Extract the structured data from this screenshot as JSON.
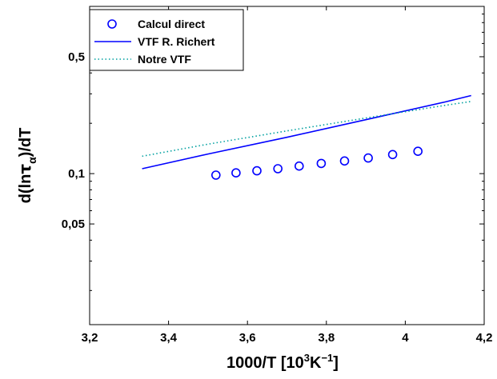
{
  "chart_data": {
    "type": "scatter",
    "xlabel": {
      "base": "1000/T [10",
      "sup1": "3",
      "mid": "K",
      "sup2": "−1",
      "end": "]"
    },
    "ylabel": {
      "pre": "d(ln",
      "greek": "τ",
      "sub": "α",
      "post": ")/dT"
    },
    "xlim": [
      3.2,
      4.2
    ],
    "ylim": [
      0.0125,
      1.0
    ],
    "yscale": "log",
    "grid": false,
    "legend_position": "top-left",
    "x_ticks": [
      3.2,
      3.4,
      3.6,
      3.8,
      4.0,
      4.2
    ],
    "x_tick_labels": [
      "3,2",
      "3,4",
      "3,6",
      "3,8",
      "4",
      "4,2"
    ],
    "y_ticks": [
      0.05,
      0.1,
      0.5
    ],
    "y_tick_labels": [
      "0,05",
      "0,1",
      "0,5"
    ],
    "series": [
      {
        "name": "Calcul direct",
        "kind": "markers",
        "marker": "circle",
        "color": "#0000ff",
        "x": [
          3.52,
          3.571,
          3.624,
          3.677,
          3.731,
          3.787,
          3.846,
          3.906,
          3.968,
          4.032
        ],
        "y": [
          0.098,
          0.101,
          0.104,
          0.107,
          0.111,
          0.115,
          0.119,
          0.124,
          0.13,
          0.136
        ]
      },
      {
        "name": "VTF R. Richert",
        "kind": "line",
        "dash": "solid",
        "color": "#0000ff",
        "x": [
          3.333,
          3.5,
          3.7,
          3.9,
          4.1,
          4.167
        ],
        "y": [
          0.107,
          0.131,
          0.165,
          0.21,
          0.268,
          0.293
        ]
      },
      {
        "name": "Notre VTF",
        "kind": "line",
        "dash": "dotted",
        "color": "#00a0a0",
        "x": [
          3.333,
          3.5,
          3.7,
          3.9,
          4.1,
          4.167
        ],
        "y": [
          0.127,
          0.15,
          0.18,
          0.215,
          0.256,
          0.27
        ]
      }
    ]
  }
}
